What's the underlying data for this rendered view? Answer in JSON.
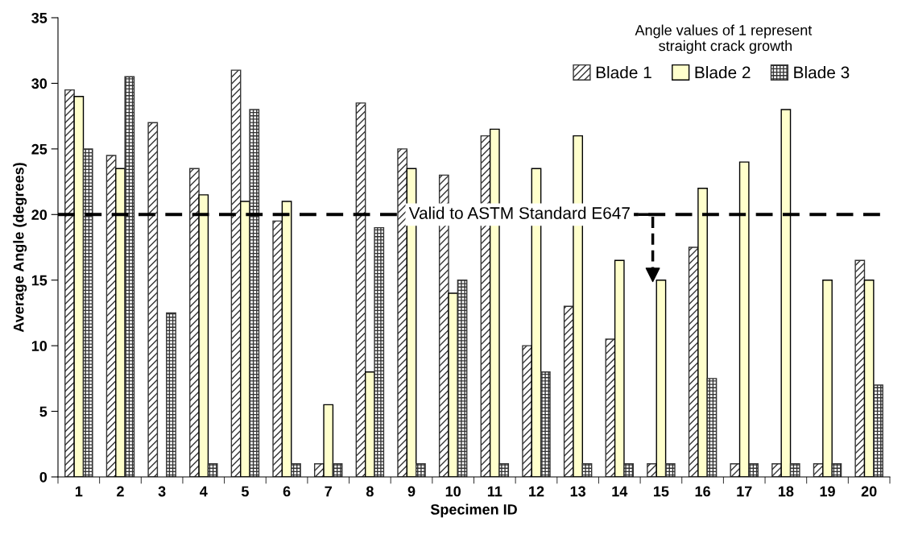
{
  "chart_data": {
    "type": "bar",
    "xlabel": "Specimen ID",
    "ylabel": "Average Angle (degrees)",
    "categories": [
      "1",
      "2",
      "3",
      "4",
      "5",
      "6",
      "7",
      "8",
      "9",
      "10",
      "11",
      "12",
      "13",
      "14",
      "15",
      "16",
      "17",
      "18",
      "19",
      "20"
    ],
    "series": [
      {
        "name": "Blade 1",
        "color": "#333333",
        "values": [
          29.5,
          24.5,
          27,
          23.5,
          31,
          19.5,
          1,
          28.5,
          25,
          23,
          26,
          10,
          13,
          10.5,
          1,
          17.5,
          1,
          1,
          1,
          16.5
        ]
      },
      {
        "name": "Blade 2",
        "color": "#ffffcc",
        "values": [
          29,
          23.5,
          null,
          21.5,
          21,
          21,
          5.5,
          8,
          23.5,
          14,
          26.5,
          23.5,
          26,
          16.5,
          15,
          22,
          24,
          28,
          15,
          15
        ]
      },
      {
        "name": "Blade 3",
        "color": "#333333",
        "values": [
          25,
          30.5,
          12.5,
          1,
          28,
          1,
          1,
          19,
          1,
          15,
          1,
          8,
          1,
          1,
          1,
          7.5,
          1,
          1,
          1,
          7
        ]
      }
    ],
    "ylim": [
      0,
      35
    ],
    "yticks": [
      0,
      5,
      10,
      15,
      20,
      25,
      30,
      35
    ],
    "grid": false,
    "legend": "top right",
    "ref_lines": [
      {
        "axis": "y",
        "value": 20,
        "label": "Valid to ASTM Standard E647",
        "color": "#000000",
        "line_style": "dashed"
      }
    ],
    "annotations": [
      "Angle values of 1 represent\n straight crack growth"
    ]
  }
}
